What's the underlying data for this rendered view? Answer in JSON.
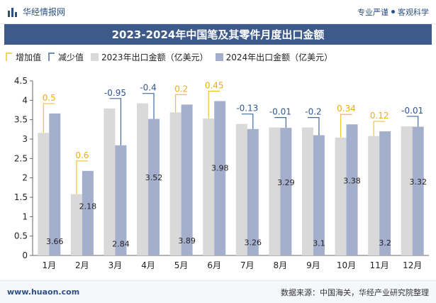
{
  "header": {
    "brand": "华经情报网",
    "slogan_left": "专业严谨",
    "slogan_right": "客观科学",
    "icons": {
      "logo": "bar-logo-icon",
      "separator": "dot-icon"
    }
  },
  "colors": {
    "title_bg": "#3d5a8a",
    "bar_2023": "#d9d9d9",
    "bar_2024": "#a4afcd",
    "increase": "#f2c12e",
    "decrease": "#3f6aa1",
    "value_label_increase": "#e8b10f",
    "value_label_decrease": "#2f5592"
  },
  "chart_data": {
    "type": "bar",
    "title": "2023-2024年中国笔及其零件月度出口金额",
    "categories": [
      "1月",
      "2月",
      "3月",
      "4月",
      "5月",
      "6月",
      "7月",
      "8月",
      "9月",
      "10月",
      "11月",
      "12月"
    ],
    "series": [
      {
        "name": "2023年出口金额（亿美元）",
        "values": [
          3.16,
          1.58,
          3.79,
          3.92,
          3.69,
          3.53,
          3.39,
          3.3,
          3.3,
          3.04,
          3.08,
          3.33
        ]
      },
      {
        "name": "2024年出口金额（亿美元）",
        "values": [
          3.66,
          2.18,
          2.84,
          3.52,
          3.89,
          3.98,
          3.26,
          3.29,
          3.1,
          3.38,
          3.2,
          3.32
        ]
      }
    ],
    "changes": [
      "0.5",
      "0.6",
      "-0.95",
      "-0.4",
      "0.2",
      "0.45",
      "-0.13",
      "-0.01",
      "-0.2",
      "0.34",
      "0.12",
      "-0.01"
    ],
    "data_labels_2024": [
      "3.66",
      "2.18",
      "2.84",
      "3.52",
      "3.89",
      "3.98",
      "3.26",
      "3.29",
      "3.1",
      "3.38",
      "3.2",
      "3.32"
    ],
    "legend": {
      "increase": "增加值",
      "decrease": "减少值",
      "s2023": "2023年出口金额（亿美元）",
      "s2024": "2024年出口金额（亿美元）",
      "placement": "top-left"
    },
    "y_ticks": [
      "0",
      "0.5",
      "1",
      "1.5",
      "2",
      "2.5",
      "3",
      "3.5",
      "4",
      "4.5"
    ],
    "ylim": [
      0,
      4.5
    ],
    "grid": false
  },
  "footer": {
    "url": "www.huaon.com",
    "source": "数据来源：中国海关，华经产业研究院整理"
  }
}
